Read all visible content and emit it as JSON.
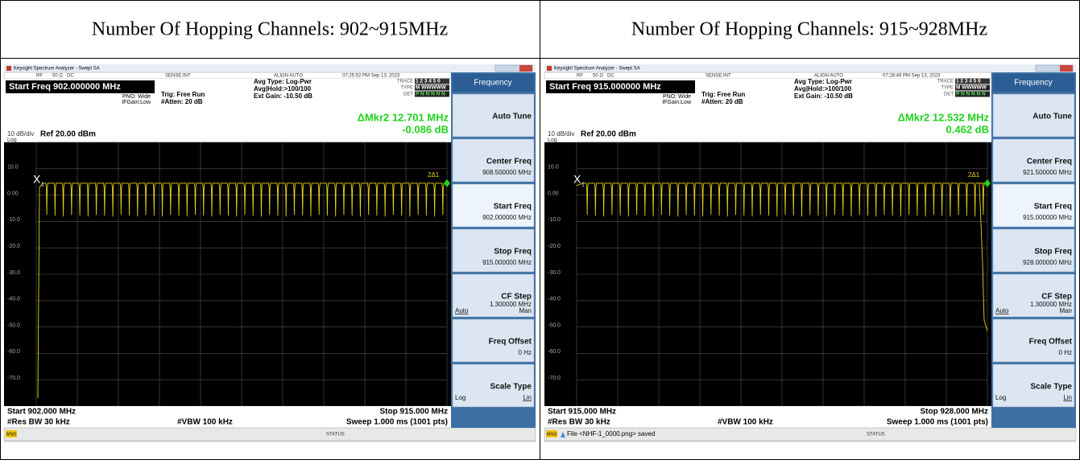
{
  "headers": [
    "Number Of Hopping Channels: 902~915MHz",
    "Number Of Hopping Channels: 915~928MHz"
  ],
  "panels": [
    {
      "title_bar": "Keysight Spectrum Analyzer - Swept SA",
      "status_row": [
        "RF",
        "50 Ω",
        "DC",
        "SENSE:INT",
        "ALIGN AUTO",
        "07:25:52 PM Sep 13, 2023"
      ],
      "start_freq_box": "Start Freq 902.000000 MHz",
      "settings": [
        "PNO: Wide",
        "IFGain:Low",
        "Trig: Free Run",
        "#Atten: 20 dB",
        "Avg Type: Log-Pwr",
        "Avg|Hold:>100/100",
        "Ext Gain: -10.50 dB"
      ],
      "trace_info": {
        "labels": [
          "TRACE",
          "TYPE",
          "DET"
        ],
        "values": [
          "1 2 3 4 5 6",
          "M WWWWW",
          "P N N N N N"
        ]
      },
      "marker_readout": [
        "ΔMkr2 12.701 MHz",
        "-0.086 dB"
      ],
      "scale": [
        "10 dB/div",
        "Ref 20.00 dBm",
        "Log"
      ],
      "y_labels": [
        "10.0",
        "0.00",
        "-10.0",
        "-20.0",
        "-30.0",
        "-40.0",
        "-50.0",
        "-60.0",
        "-70.0"
      ],
      "markers": {
        "ref": "X",
        "ref_num": "1",
        "delta": "2Δ1"
      },
      "footer": [
        "Start 902.000 MHz",
        "Stop 915.000 MHz",
        "#Res BW 30 kHz",
        "#VBW 100 kHz",
        "Sweep 1.000 ms (1001 pts)"
      ],
      "status_bar": {
        "msg": "MSG",
        "status": "STATUS"
      },
      "softkeys": {
        "menu": "Frequency",
        "keys": [
          {
            "label": "Auto Tune"
          },
          {
            "label": "Center Freq",
            "value": "908.500000 MHz"
          },
          {
            "label": "Start Freq",
            "value": "902.000000 MHz"
          },
          {
            "label": "Stop Freq",
            "value": "915.000000 MHz"
          },
          {
            "label": "CF Step",
            "value": "1.300000 MHz",
            "options": [
              "Auto",
              "Man"
            ]
          },
          {
            "label": "Freq Offset",
            "value": "0 Hz"
          },
          {
            "label": "Scale Type",
            "options": [
              "Log",
              "Lin"
            ]
          }
        ]
      }
    },
    {
      "title_bar": "Keysight Spectrum Analyzer - Swept SA",
      "status_row": [
        "RF",
        "50 Ω",
        "DC",
        "SENSE:INT",
        "ALIGN AUTO",
        "07:28:49 PM Sep 13, 2023"
      ],
      "start_freq_box": "Start Freq 915.000000 MHz",
      "settings": [
        "PNO: Wide",
        "IFGain:Low",
        "Trig: Free Run",
        "#Atten: 20 dB",
        "Avg Type: Log-Pwr",
        "Avg|Hold:>100/100",
        "Ext Gain: -10.50 dB"
      ],
      "trace_info": {
        "labels": [
          "TRACE",
          "TYPE",
          "DET"
        ],
        "values": [
          "1 2 3 4 5 6",
          "M WWWWW",
          "P N N N N N"
        ]
      },
      "marker_readout": [
        "ΔMkr2 12.532 MHz",
        "0.462 dB"
      ],
      "scale": [
        "10 dB/div",
        "Ref 20.00 dBm",
        "Log"
      ],
      "y_labels": [
        "10.0",
        "0.00",
        "-10.0",
        "-20.0",
        "-30.0",
        "-40.0",
        "-50.0",
        "-60.0",
        "-70.0"
      ],
      "markers": {
        "ref": "X",
        "ref_num": "1",
        "delta": "2Δ1"
      },
      "footer": [
        "Start 915.000 MHz",
        "Stop 928.000 MHz",
        "#Res BW 30 kHz",
        "#VBW 100 kHz",
        "Sweep 1.000 ms (1001 pts)"
      ],
      "status_bar": {
        "msg": "MSG",
        "message": "File <NHF-1_0000.png> saved",
        "status": "STATUS"
      },
      "softkeys": {
        "menu": "Frequency",
        "keys": [
          {
            "label": "Auto Tune"
          },
          {
            "label": "Center Freq",
            "value": "921.500000 MHz"
          },
          {
            "label": "Start Freq",
            "value": "915.000000 MHz"
          },
          {
            "label": "Stop Freq",
            "value": "928.000000 MHz"
          },
          {
            "label": "CF Step",
            "value": "1.300000 MHz",
            "options": [
              "Auto",
              "Man"
            ]
          },
          {
            "label": "Freq Offset",
            "value": "0 Hz"
          },
          {
            "label": "Scale Type",
            "options": [
              "Log",
              "Lin"
            ]
          }
        ]
      }
    }
  ]
}
